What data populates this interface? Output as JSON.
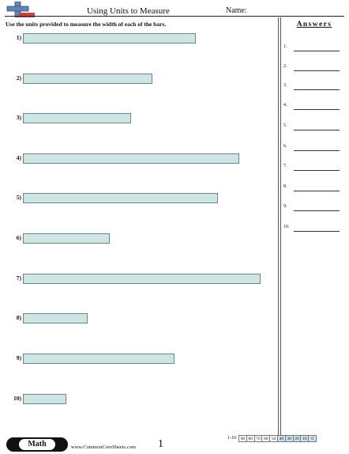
{
  "header": {
    "title": "Using Units to Measure",
    "name_label": "Name:"
  },
  "instructions": "Use the units provided to measure the width of each of the bars.",
  "colors": {
    "bar_fill": "#cde6e5",
    "bar_border": "#6f8585",
    "logo_blue": "#5f86b3",
    "logo_red": "#c94646"
  },
  "questions": [
    {
      "label": "1)",
      "bar_length_ratio": 0.8
    },
    {
      "label": "2)",
      "bar_length_ratio": 0.6
    },
    {
      "label": "3)",
      "bar_length_ratio": 0.5
    },
    {
      "label": "4)",
      "bar_length_ratio": 1.0
    },
    {
      "label": "5)",
      "bar_length_ratio": 0.9
    },
    {
      "label": "6)",
      "bar_length_ratio": 0.4
    },
    {
      "label": "7)",
      "bar_length_ratio": 1.1
    },
    {
      "label": "8)",
      "bar_length_ratio": 0.3
    },
    {
      "label": "9)",
      "bar_length_ratio": 0.7
    },
    {
      "label": "10)",
      "bar_length_ratio": 0.2
    }
  ],
  "answers": {
    "title": "Answers",
    "items": [
      "1.",
      "2.",
      "3.",
      "4.",
      "5.",
      "6.",
      "7.",
      "8.",
      "9.",
      "10."
    ]
  },
  "footer": {
    "badge": "Math",
    "site": "www.CommonCoreSheets.com",
    "page_number": "1",
    "score_range": "1-10",
    "scores": [
      "90",
      "80",
      "70",
      "60",
      "50",
      "40",
      "30",
      "20",
      "10",
      "0"
    ],
    "highlighted_scores": [
      "40",
      "30",
      "20",
      "10",
      "0"
    ]
  }
}
